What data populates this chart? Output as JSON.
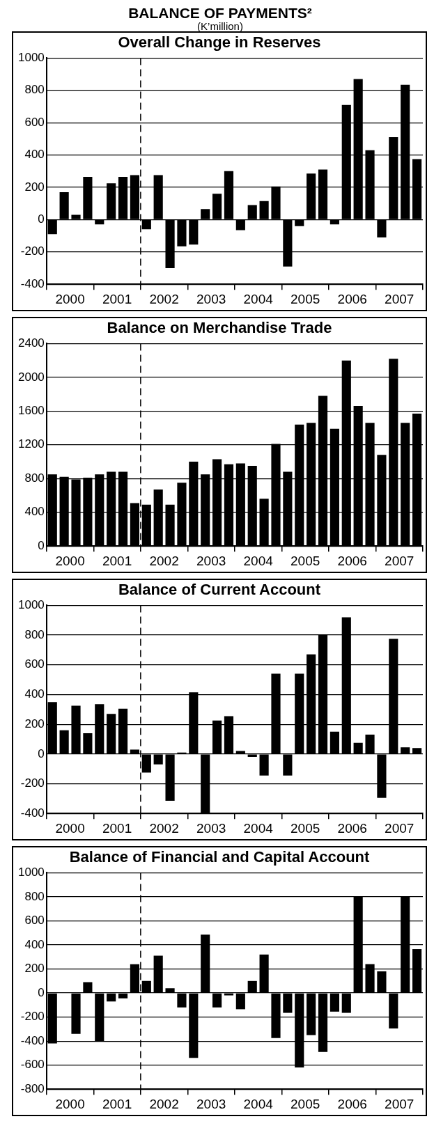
{
  "chart_data": [
    {
      "type": "bar",
      "annotations": [
        "BALANCE OF PAYMENTS²",
        "(K’million)"
      ],
      "title": "Overall Change in Reserves",
      "x": [
        2000.125,
        2000.375,
        2000.625,
        2000.875,
        2001.125,
        2001.375,
        2001.625,
        2001.875,
        2002.125,
        2002.375,
        2002.625,
        2002.875,
        2003.125,
        2003.375,
        2003.625,
        2003.875,
        2004.125,
        2004.375,
        2004.625,
        2004.875,
        2005.125,
        2005.375,
        2005.625,
        2005.875,
        2006.125,
        2006.375,
        2006.625,
        2006.875,
        2007.125,
        2007.375,
        2007.625,
        2007.875
      ],
      "values": [
        -90,
        170,
        30,
        265,
        -30,
        225,
        265,
        275,
        -60,
        275,
        -300,
        -165,
        -155,
        65,
        160,
        300,
        -65,
        90,
        115,
        205,
        -290,
        -40,
        285,
        310,
        -30,
        710,
        870,
        430,
        -110,
        510,
        835,
        375
      ],
      "color": "#000000",
      "xlim": [
        2000,
        2008
      ],
      "xticks": [
        {
          "value": 2000,
          "label": null
        },
        {
          "value": 2000.5,
          "label": "2000"
        },
        {
          "value": 2001,
          "label": null
        },
        {
          "value": 2001.5,
          "label": "2001"
        },
        {
          "value": 2002,
          "label": null
        },
        {
          "value": 2002.5,
          "label": "2002"
        },
        {
          "value": 2003,
          "label": null
        },
        {
          "value": 2003.5,
          "label": "2003"
        },
        {
          "value": 2004,
          "label": null
        },
        {
          "value": 2004.5,
          "label": "2004"
        },
        {
          "value": 2005,
          "label": null
        },
        {
          "value": 2005.5,
          "label": "2005"
        },
        {
          "value": 2006,
          "label": null
        },
        {
          "value": 2006.5,
          "label": "2006"
        },
        {
          "value": 2007,
          "label": null
        },
        {
          "value": 2007.5,
          "label": "2007"
        },
        {
          "value": 2008,
          "label": null
        }
      ],
      "ylim": [
        -400,
        1000
      ],
      "yticks": [
        -400,
        -200,
        0,
        200,
        400,
        600,
        800,
        1000
      ],
      "grid": "y",
      "ref_lines": [
        {
          "axis": "x",
          "value": 2002,
          "line_style": "dashed",
          "color": "#000000"
        }
      ]
    },
    {
      "type": "bar",
      "title": "Balance on Merchandise Trade",
      "x": [
        2000.125,
        2000.375,
        2000.625,
        2000.875,
        2001.125,
        2001.375,
        2001.625,
        2001.875,
        2002.125,
        2002.375,
        2002.625,
        2002.875,
        2003.125,
        2003.375,
        2003.625,
        2003.875,
        2004.125,
        2004.375,
        2004.625,
        2004.875,
        2005.125,
        2005.375,
        2005.625,
        2005.875,
        2006.125,
        2006.375,
        2006.625,
        2006.875,
        2007.125,
        2007.375,
        2007.625,
        2007.875
      ],
      "values": [
        850,
        820,
        790,
        810,
        850,
        880,
        880,
        510,
        490,
        670,
        490,
        750,
        1000,
        850,
        1030,
        970,
        980,
        950,
        560,
        1210,
        880,
        1440,
        1460,
        1780,
        1390,
        2200,
        1660,
        1460,
        1080,
        2220,
        1460,
        1570
      ],
      "color": "#000000",
      "xlim": [
        2000,
        2008
      ],
      "xticks": [
        {
          "value": 2000,
          "label": null
        },
        {
          "value": 2000.5,
          "label": "2000"
        },
        {
          "value": 2001,
          "label": null
        },
        {
          "value": 2001.5,
          "label": "2001"
        },
        {
          "value": 2002,
          "label": null
        },
        {
          "value": 2002.5,
          "label": "2002"
        },
        {
          "value": 2003,
          "label": null
        },
        {
          "value": 2003.5,
          "label": "2003"
        },
        {
          "value": 2004,
          "label": null
        },
        {
          "value": 2004.5,
          "label": "2004"
        },
        {
          "value": 2005,
          "label": null
        },
        {
          "value": 2005.5,
          "label": "2005"
        },
        {
          "value": 2006,
          "label": null
        },
        {
          "value": 2006.5,
          "label": "2006"
        },
        {
          "value": 2007,
          "label": null
        },
        {
          "value": 2007.5,
          "label": "2007"
        },
        {
          "value": 2008,
          "label": null
        }
      ],
      "ylim": [
        0,
        2400
      ],
      "yticks": [
        0,
        400,
        800,
        1200,
        1600,
        2000,
        2400
      ],
      "grid": "y",
      "ref_lines": [
        {
          "axis": "x",
          "value": 2002,
          "line_style": "dashed",
          "color": "#000000"
        }
      ]
    },
    {
      "type": "bar",
      "title": "Balance of Current Account",
      "x": [
        2000.125,
        2000.375,
        2000.625,
        2000.875,
        2001.125,
        2001.375,
        2001.625,
        2001.875,
        2002.125,
        2002.375,
        2002.625,
        2002.875,
        2003.125,
        2003.375,
        2003.625,
        2003.875,
        2004.125,
        2004.375,
        2004.625,
        2004.875,
        2005.125,
        2005.375,
        2005.625,
        2005.875,
        2006.125,
        2006.375,
        2006.625,
        2006.875,
        2007.125,
        2007.375,
        2007.625,
        2007.875
      ],
      "values": [
        350,
        160,
        325,
        140,
        335,
        270,
        305,
        30,
        -125,
        -70,
        -315,
        10,
        415,
        -400,
        225,
        255,
        20,
        -20,
        -145,
        540,
        -145,
        540,
        670,
        800,
        150,
        920,
        75,
        130,
        -295,
        775,
        45,
        40
      ],
      "color": "#000000",
      "xlim": [
        2000,
        2008
      ],
      "xticks": [
        {
          "value": 2000,
          "label": null
        },
        {
          "value": 2000.5,
          "label": "2000"
        },
        {
          "value": 2001,
          "label": null
        },
        {
          "value": 2001.5,
          "label": "2001"
        },
        {
          "value": 2002,
          "label": null
        },
        {
          "value": 2002.5,
          "label": "2002"
        },
        {
          "value": 2003,
          "label": null
        },
        {
          "value": 2003.5,
          "label": "2003"
        },
        {
          "value": 2004,
          "label": null
        },
        {
          "value": 2004.5,
          "label": "2004"
        },
        {
          "value": 2005,
          "label": null
        },
        {
          "value": 2005.5,
          "label": "2005"
        },
        {
          "value": 2006,
          "label": null
        },
        {
          "value": 2006.5,
          "label": "2006"
        },
        {
          "value": 2007,
          "label": null
        },
        {
          "value": 2007.5,
          "label": "2007"
        },
        {
          "value": 2008,
          "label": null
        }
      ],
      "ylim": [
        -400,
        1000
      ],
      "yticks": [
        -400,
        -200,
        0,
        200,
        400,
        600,
        800,
        1000
      ],
      "grid": "y",
      "ref_lines": [
        {
          "axis": "x",
          "value": 2002,
          "line_style": "dashed",
          "color": "#000000"
        }
      ]
    },
    {
      "type": "bar",
      "title": "Balance of Financial and Capital Account",
      "x": [
        2000.125,
        2000.375,
        2000.625,
        2000.875,
        2001.125,
        2001.375,
        2001.625,
        2001.875,
        2002.125,
        2002.375,
        2002.625,
        2002.875,
        2003.125,
        2003.375,
        2003.625,
        2003.875,
        2004.125,
        2004.375,
        2004.625,
        2004.875,
        2005.125,
        2005.375,
        2005.625,
        2005.875,
        2006.125,
        2006.375,
        2006.625,
        2006.875,
        2007.125,
        2007.375,
        2007.625,
        2007.875
      ],
      "values": [
        -420,
        0,
        -340,
        90,
        -405,
        -70,
        -45,
        240,
        100,
        310,
        40,
        -120,
        -540,
        485,
        -120,
        -20,
        -135,
        100,
        320,
        -375,
        -165,
        -620,
        -350,
        -490,
        -155,
        -165,
        800,
        240,
        180,
        -295,
        800,
        365
      ],
      "color": "#000000",
      "xlim": [
        2000,
        2008
      ],
      "xticks": [
        {
          "value": 2000,
          "label": null
        },
        {
          "value": 2000.5,
          "label": "2000"
        },
        {
          "value": 2001,
          "label": null
        },
        {
          "value": 2001.5,
          "label": "2001"
        },
        {
          "value": 2002,
          "label": null
        },
        {
          "value": 2002.5,
          "label": "2002"
        },
        {
          "value": 2003,
          "label": null
        },
        {
          "value": 2003.5,
          "label": "2003"
        },
        {
          "value": 2004,
          "label": null
        },
        {
          "value": 2004.5,
          "label": "2004"
        },
        {
          "value": 2005,
          "label": null
        },
        {
          "value": 2005.5,
          "label": "2005"
        },
        {
          "value": 2006,
          "label": null
        },
        {
          "value": 2006.5,
          "label": "2006"
        },
        {
          "value": 2007,
          "label": null
        },
        {
          "value": 2007.5,
          "label": "2007"
        },
        {
          "value": 2008,
          "label": null
        }
      ],
      "ylim": [
        -800,
        1000
      ],
      "yticks": [
        -800,
        -600,
        -400,
        -200,
        0,
        200,
        400,
        600,
        800,
        1000
      ],
      "grid": "y",
      "ref_lines": [
        {
          "axis": "x",
          "value": 2002,
          "line_style": "dashed",
          "color": "#000000"
        }
      ]
    }
  ]
}
